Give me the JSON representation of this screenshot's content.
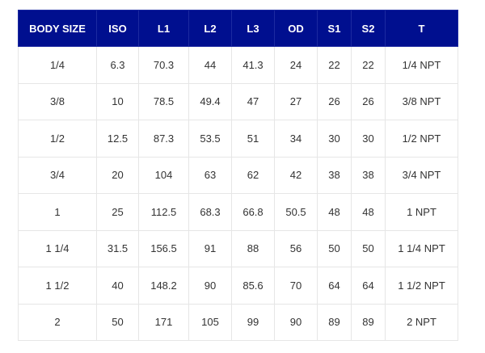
{
  "table": {
    "header_bg": "#000f8f",
    "columns": [
      "BODY SIZE",
      "ISO",
      "L1",
      "L2",
      "L3",
      "OD",
      "S1",
      "S2",
      "T"
    ],
    "rows": [
      [
        "1/4",
        "6.3",
        "70.3",
        "44",
        "41.3",
        "24",
        "22",
        "22",
        "1/4 NPT"
      ],
      [
        "3/8",
        "10",
        "78.5",
        "49.4",
        "47",
        "27",
        "26",
        "26",
        "3/8 NPT"
      ],
      [
        "1/2",
        "12.5",
        "87.3",
        "53.5",
        "51",
        "34",
        "30",
        "30",
        "1/2 NPT"
      ],
      [
        "3/4",
        "20",
        "104",
        "63",
        "62",
        "42",
        "38",
        "38",
        "3/4 NPT"
      ],
      [
        "1",
        "25",
        "112.5",
        "68.3",
        "66.8",
        "50.5",
        "48",
        "48",
        "1 NPT"
      ],
      [
        "1 1/4",
        "31.5",
        "156.5",
        "91",
        "88",
        "56",
        "50",
        "50",
        "1 1/4 NPT"
      ],
      [
        "1 1/2",
        "40",
        "148.2",
        "90",
        "85.6",
        "70",
        "64",
        "64",
        "1 1/2 NPT"
      ],
      [
        "2",
        "50",
        "171",
        "105",
        "99",
        "90",
        "89",
        "89",
        "2 NPT"
      ]
    ]
  }
}
